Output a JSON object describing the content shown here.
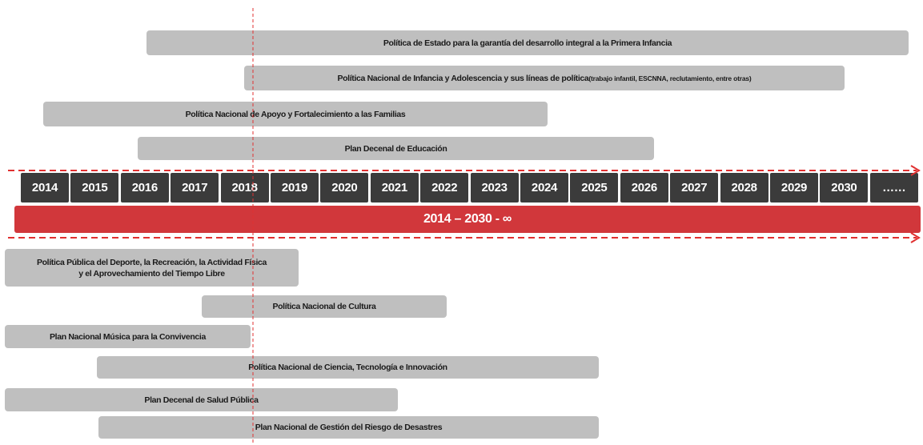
{
  "policies_top": [
    {
      "label": "Política de Estado para la garantía del desarrollo integral a la Primera Infancia"
    },
    {
      "label": "Política Nacional de Infancia y Adolescencia y sus líneas de política",
      "note": "(trabajo infantil, ESCNNA, reclutamiento, entre otras)"
    },
    {
      "label": "Política Nacional de Apoyo y Fortalecimiento a las Familias"
    },
    {
      "label": "Plan Decenal de Educación"
    }
  ],
  "timeline": {
    "years": [
      "2014",
      "2015",
      "2016",
      "2017",
      "2018",
      "2019",
      "2020",
      "2021",
      "2022",
      "2023",
      "2024",
      "2025",
      "2026",
      "2027",
      "2028",
      "2029",
      "2030",
      "……"
    ],
    "banner": "2014 – 2030 - ∞"
  },
  "policies_bottom": [
    {
      "lines": [
        "Política Pública del Deporte, la Recreación, la Actividad Física",
        "y el Aprovechamiento del Tiempo Libre"
      ]
    },
    {
      "label": "Política Nacional de Cultura"
    },
    {
      "label": "Plan Nacional Música para la Convivencia"
    },
    {
      "label": "Política Nacional de Ciencia, Tecnología e Innovación"
    },
    {
      "label": "Plan Decenal de Salud Pública"
    },
    {
      "label": "Plan Nacional de Gestión del Riesgo de Desastres"
    }
  ]
}
